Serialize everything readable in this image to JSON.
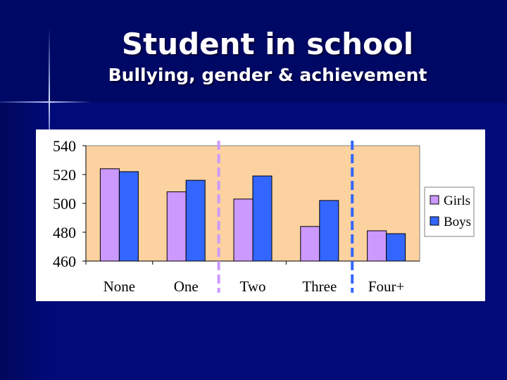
{
  "slide": {
    "title": "Student in school",
    "subtitle": "Bullying, gender & achievement"
  },
  "colors": {
    "background": "#000a78",
    "plot_area": "#fbd2a0",
    "girls": "#cc99ff",
    "boys": "#3366ff"
  },
  "chart_data": {
    "type": "bar",
    "title": "",
    "xlabel": "",
    "ylabel": "",
    "categories": [
      "None",
      "One",
      "Two",
      "Three",
      "Four+"
    ],
    "series": [
      {
        "name": "Girls",
        "values": [
          524,
          508,
          503,
          484,
          481
        ]
      },
      {
        "name": "Boys",
        "values": [
          522,
          516,
          519,
          502,
          479
        ]
      }
    ],
    "ylim": [
      460,
      540
    ],
    "yticks": [
      460,
      480,
      500,
      520,
      540
    ],
    "grid": false,
    "legend": "right",
    "annotations": [
      {
        "type": "vertical-dashed-line",
        "between": [
          "One",
          "Two"
        ],
        "color": "#cc99ff"
      },
      {
        "type": "vertical-dashed-line",
        "between": [
          "Three",
          "Four+"
        ],
        "color": "#3366ff"
      }
    ]
  }
}
